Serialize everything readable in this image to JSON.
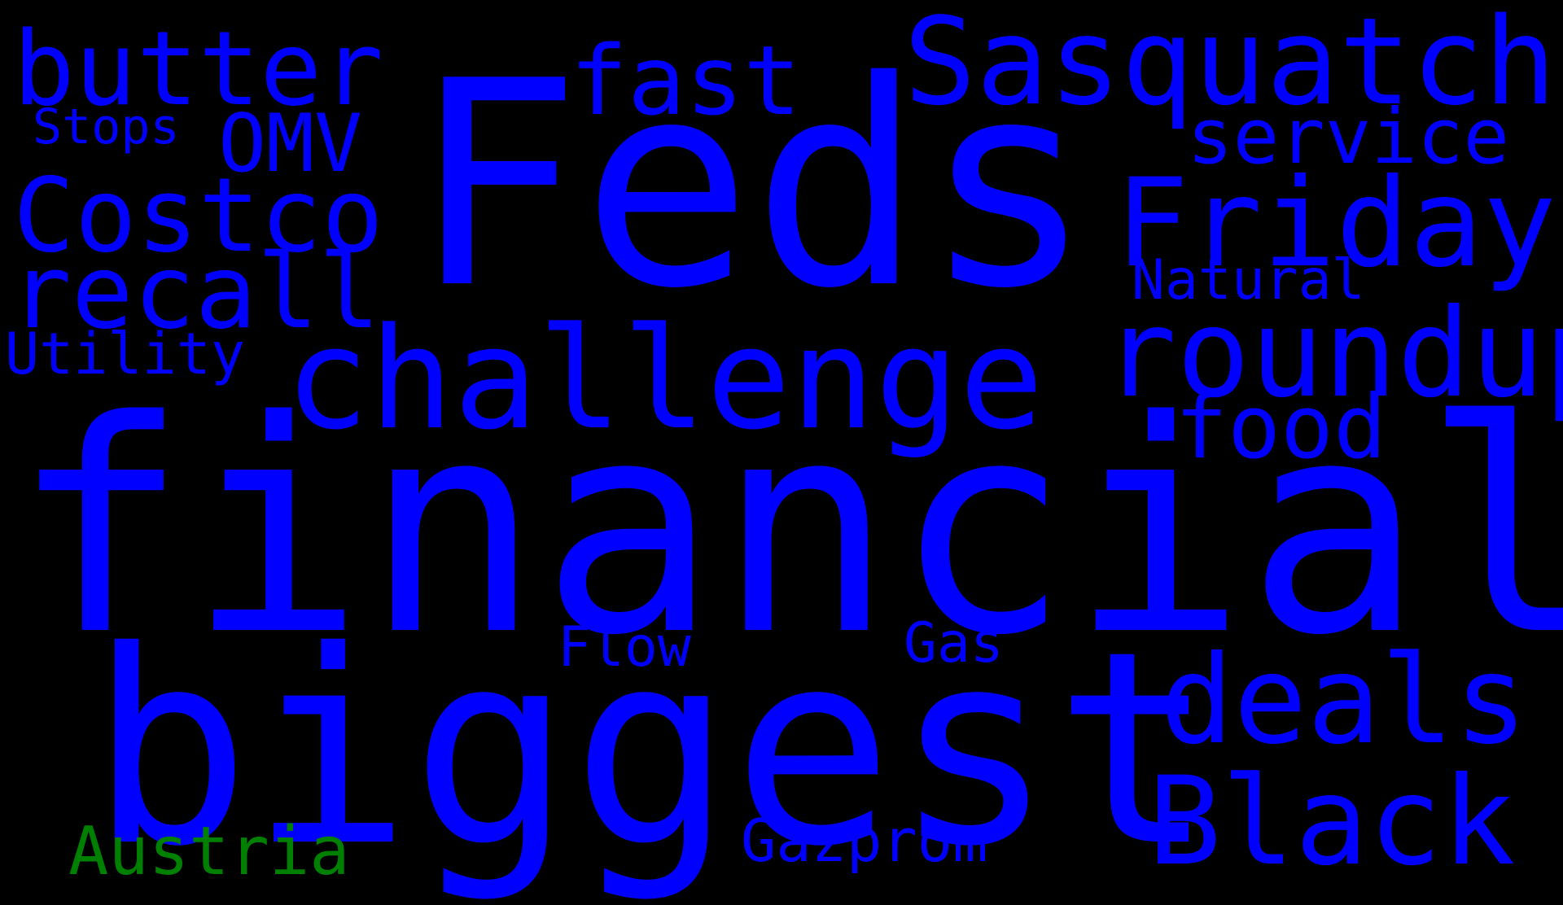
{
  "background_color": "#000000",
  "words": [
    {
      "text": "financial",
      "color": "#0000ff"
    },
    {
      "text": "biggest",
      "color": "#0000ff"
    },
    {
      "text": "Feds",
      "color": "#0000ff"
    },
    {
      "text": "challenge",
      "color": "#0000ff"
    },
    {
      "text": "Sasquatch",
      "color": "#0000ff"
    },
    {
      "text": "butter",
      "color": "#0000ff"
    },
    {
      "text": "Costco",
      "color": "#0000ff"
    },
    {
      "text": "recall",
      "color": "#0000ff"
    },
    {
      "text": "roundup",
      "color": "#0000ff"
    },
    {
      "text": "Friday",
      "color": "#0000ff"
    },
    {
      "text": "Black",
      "color": "#0000ff"
    },
    {
      "text": "deals",
      "color": "#0000ff"
    },
    {
      "text": "fast",
      "color": "#0000ff"
    },
    {
      "text": "OMV",
      "color": "#0000ff"
    },
    {
      "text": "service",
      "color": "#0000ff"
    },
    {
      "text": "food",
      "color": "#0000ff"
    },
    {
      "text": "Austria",
      "color": "#008000"
    },
    {
      "text": "Gazprom",
      "color": "#0000ff"
    },
    {
      "text": "Utility",
      "color": "#0000ff"
    },
    {
      "text": "Natural",
      "color": "#0000ff"
    },
    {
      "text": "Flow",
      "color": "#0000ff"
    },
    {
      "text": "Gas",
      "color": "#0000ff"
    },
    {
      "text": "Stops",
      "color": "#0000ff"
    }
  ]
}
